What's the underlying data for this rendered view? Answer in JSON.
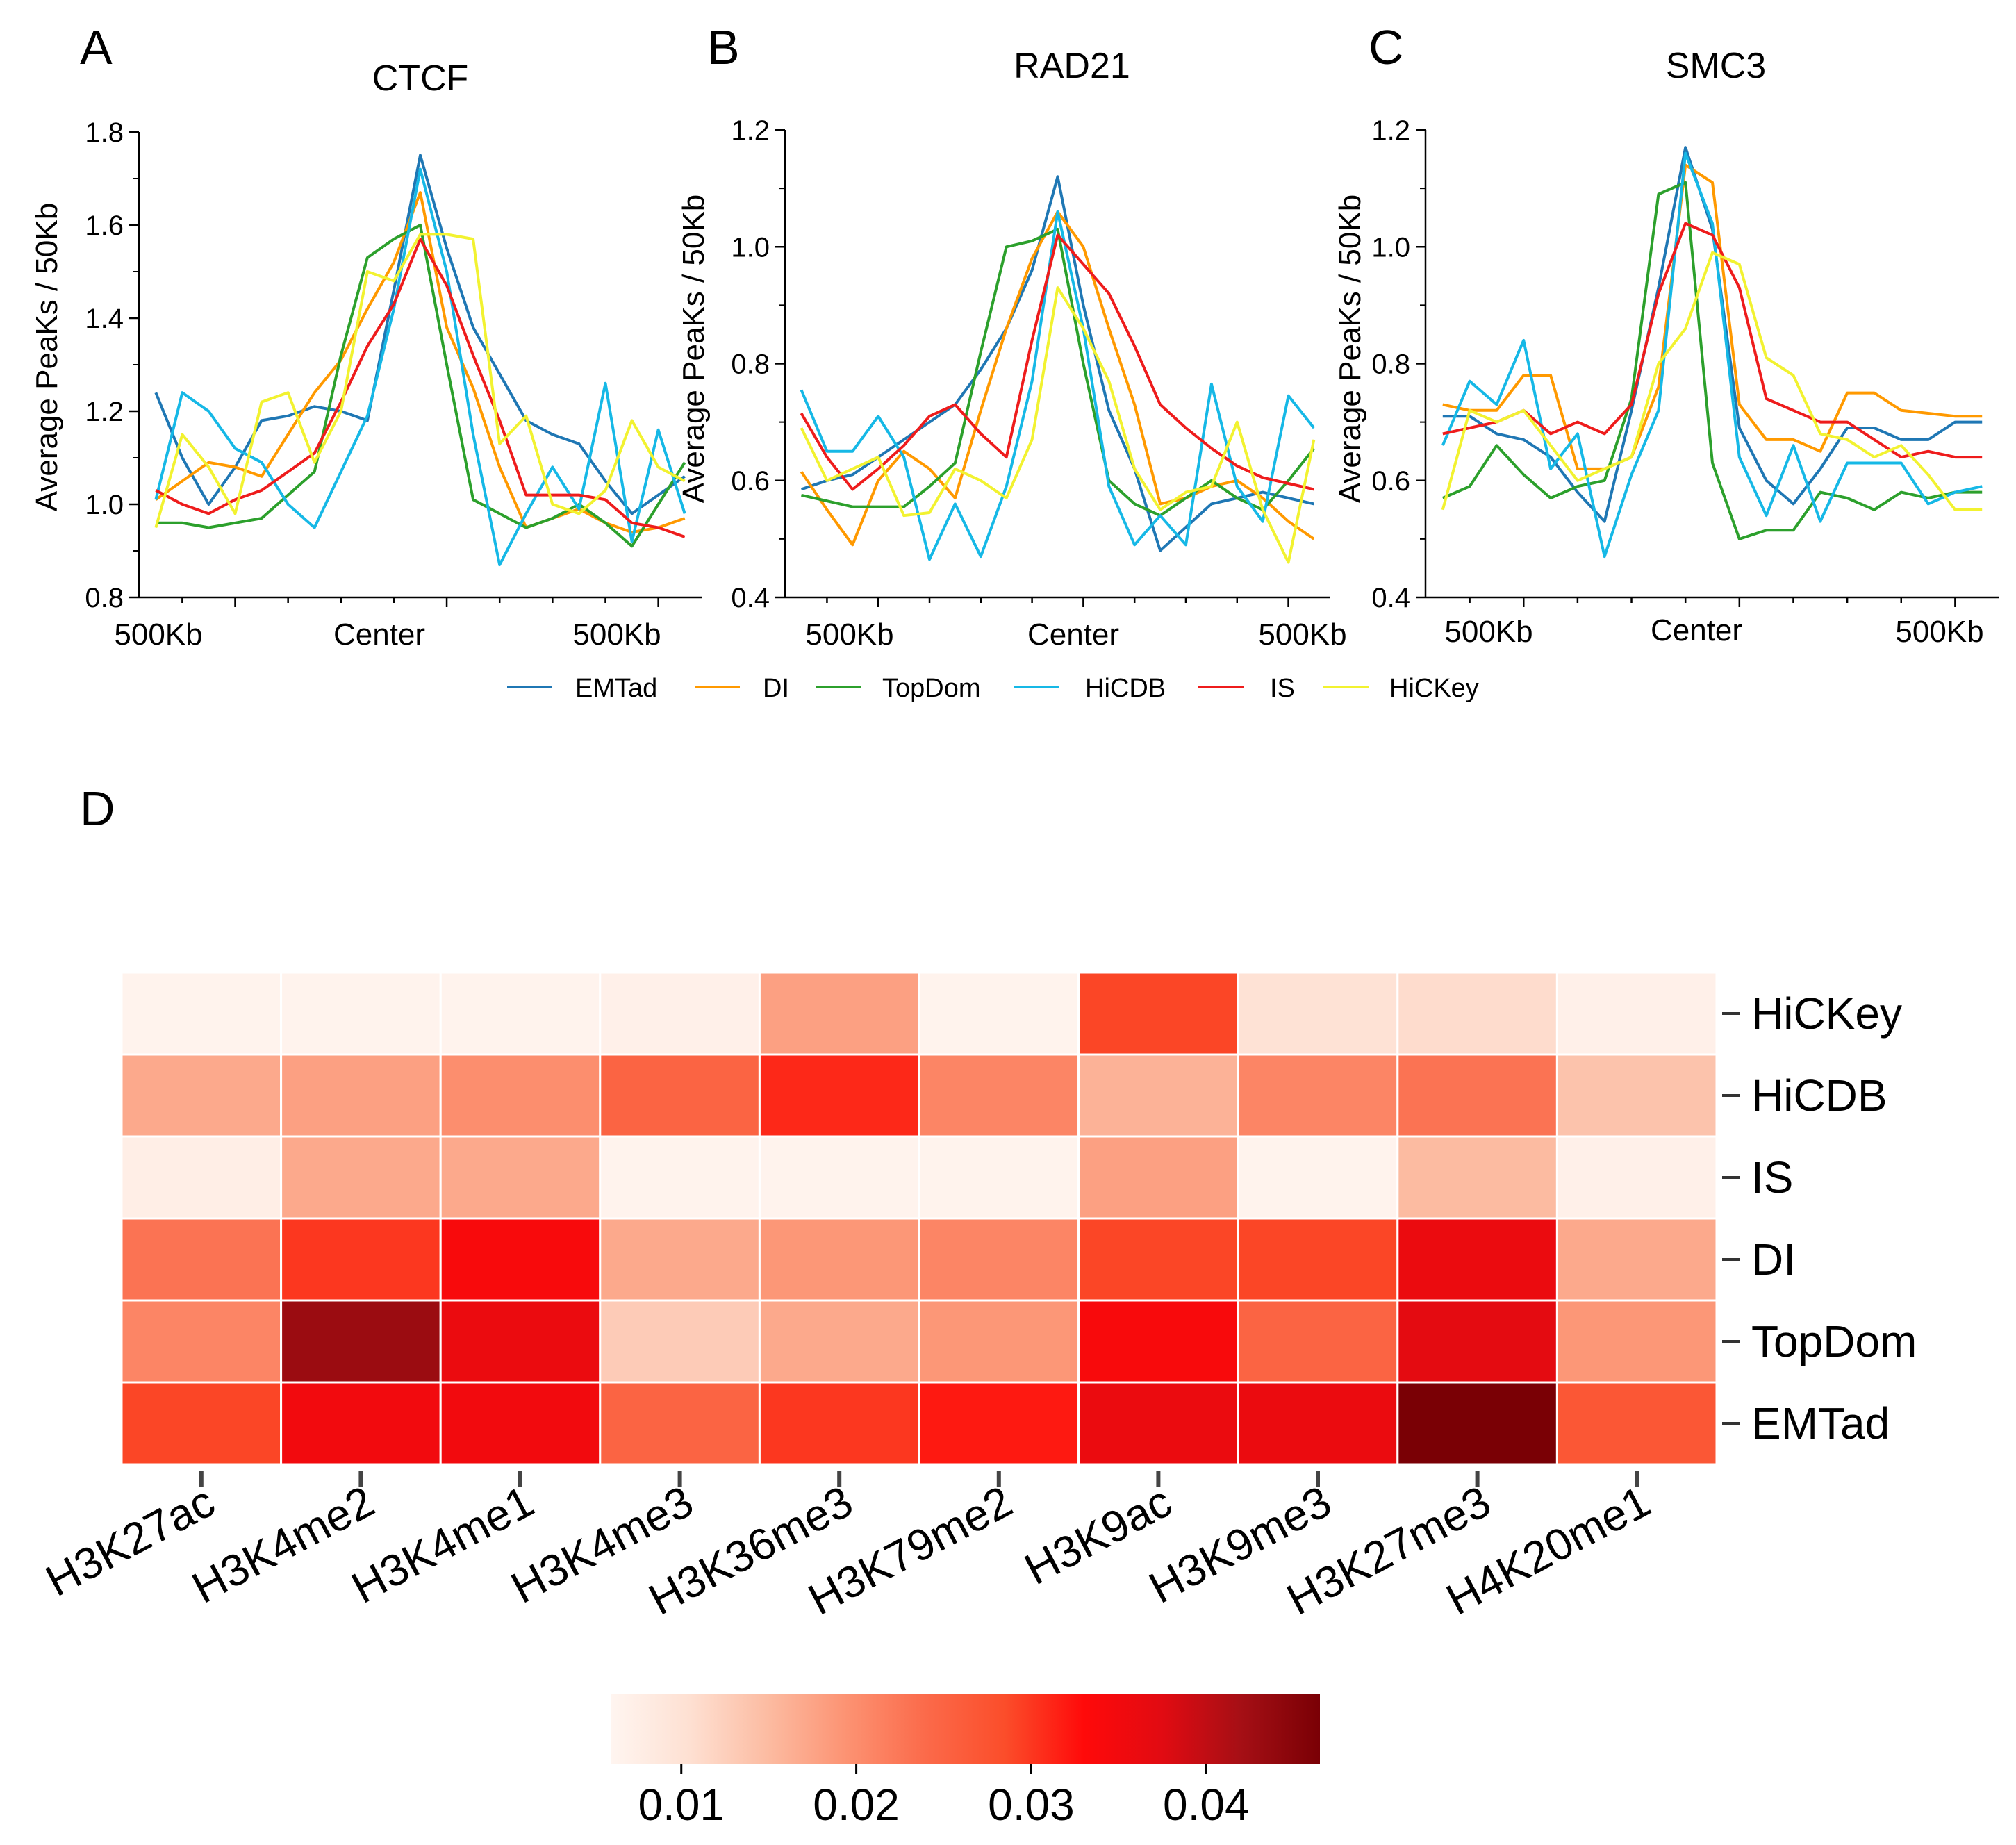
{
  "colors": {
    "EMTad": "#1f77b4",
    "DI": "#ff9900",
    "TopDom": "#2ca02c",
    "HiCDB": "#16b8e6",
    "IS": "#ee1c1c",
    "HiCKey": "#f2f230"
  },
  "chart_data": [
    {
      "type": "line",
      "panel": "A",
      "title": "CTCF",
      "ylabel": "Average PeaKs / 50Kb",
      "xlabel": "",
      "ylim": [
        0.8,
        1.8
      ],
      "yticks": [
        "0.8",
        "1.0",
        "1.2",
        "1.4",
        "1.6",
        "1.8"
      ],
      "xticklabels": [
        "500Kb",
        "Center",
        "500Kb"
      ],
      "grid": false,
      "x": [
        -10,
        -9,
        -8,
        -7,
        -6,
        -5,
        -4,
        -3,
        -2,
        -1,
        0,
        1,
        2,
        3,
        4,
        5,
        6,
        7,
        8,
        9,
        10
      ],
      "series": [
        {
          "name": "EMTad",
          "values": [
            1.24,
            1.1,
            1.0,
            1.08,
            1.18,
            1.19,
            1.21,
            1.2,
            1.18,
            1.46,
            1.75,
            1.55,
            1.38,
            1.28,
            1.18,
            1.15,
            1.13,
            1.05,
            0.98,
            1.02,
            1.06
          ]
        },
        {
          "name": "DI",
          "values": [
            1.01,
            1.05,
            1.09,
            1.08,
            1.06,
            1.15,
            1.24,
            1.31,
            1.42,
            1.52,
            1.67,
            1.38,
            1.25,
            1.08,
            0.95,
            0.97,
            0.99,
            0.96,
            0.94,
            0.95,
            0.97
          ]
        },
        {
          "name": "TopDom",
          "values": [
            0.96,
            0.96,
            0.95,
            0.96,
            0.97,
            1.02,
            1.07,
            1.32,
            1.53,
            1.57,
            1.6,
            1.3,
            1.01,
            0.98,
            0.95,
            0.97,
            1.0,
            0.96,
            0.91,
            1.0,
            1.09
          ]
        },
        {
          "name": "HiCDB",
          "values": [
            1.01,
            1.24,
            1.2,
            1.12,
            1.09,
            1.0,
            0.95,
            1.07,
            1.19,
            1.42,
            1.72,
            1.5,
            1.15,
            0.87,
            0.98,
            1.08,
            0.99,
            1.26,
            0.92,
            1.16,
            0.98
          ]
        },
        {
          "name": "IS",
          "values": [
            1.03,
            1.0,
            0.98,
            1.01,
            1.03,
            1.07,
            1.11,
            1.22,
            1.34,
            1.43,
            1.57,
            1.47,
            1.32,
            1.18,
            1.02,
            1.02,
            1.02,
            1.01,
            0.96,
            0.95,
            0.93
          ]
        },
        {
          "name": "HiCKey",
          "values": [
            0.95,
            1.15,
            1.08,
            0.98,
            1.22,
            1.24,
            1.09,
            1.2,
            1.5,
            1.48,
            1.58,
            1.58,
            1.57,
            1.13,
            1.19,
            1.0,
            0.98,
            1.03,
            1.18,
            1.08,
            1.05
          ]
        }
      ]
    },
    {
      "type": "line",
      "panel": "B",
      "title": "RAD21",
      "ylabel": "Average PeaKs / 50Kb",
      "xlabel": "",
      "ylim": [
        0.4,
        1.2
      ],
      "yticks": [
        "0.4",
        "0.6",
        "0.8",
        "1.0",
        "1.2"
      ],
      "xticklabels": [
        "500Kb",
        "Center",
        "500Kb"
      ],
      "grid": false,
      "x": [
        -10,
        -9,
        -8,
        -7,
        -6,
        -5,
        -4,
        -3,
        -2,
        -1,
        0,
        1,
        2,
        3,
        4,
        5,
        6,
        7,
        8,
        9,
        10
      ],
      "series": [
        {
          "name": "EMTad",
          "values": [
            0.585,
            0.6,
            0.61,
            0.64,
            0.67,
            0.7,
            0.73,
            0.79,
            0.86,
            0.96,
            1.12,
            0.9,
            0.72,
            0.62,
            0.48,
            0.52,
            0.56,
            0.57,
            0.58,
            0.57,
            0.56
          ]
        },
        {
          "name": "DI",
          "values": [
            0.615,
            0.55,
            0.49,
            0.6,
            0.65,
            0.62,
            0.57,
            0.72,
            0.86,
            0.98,
            1.06,
            1.0,
            0.86,
            0.73,
            0.56,
            0.57,
            0.59,
            0.6,
            0.57,
            0.53,
            0.5
          ]
        },
        {
          "name": "TopDom",
          "values": [
            0.575,
            0.565,
            0.555,
            0.555,
            0.555,
            0.59,
            0.63,
            0.82,
            1.0,
            1.01,
            1.03,
            0.8,
            0.6,
            0.56,
            0.54,
            0.57,
            0.6,
            0.57,
            0.55,
            0.6,
            0.655
          ]
        },
        {
          "name": "HiCDB",
          "values": [
            0.755,
            0.65,
            0.65,
            0.71,
            0.64,
            0.465,
            0.56,
            0.47,
            0.59,
            0.77,
            1.06,
            0.86,
            0.59,
            0.49,
            0.54,
            0.49,
            0.765,
            0.59,
            0.53,
            0.745,
            0.69
          ]
        },
        {
          "name": "IS",
          "values": [
            0.715,
            0.64,
            0.585,
            0.62,
            0.66,
            0.71,
            0.73,
            0.68,
            0.64,
            0.84,
            1.02,
            0.97,
            0.92,
            0.83,
            0.73,
            0.69,
            0.655,
            0.625,
            0.605,
            0.595,
            0.585
          ]
        },
        {
          "name": "HiCKey",
          "values": [
            0.69,
            0.6,
            0.62,
            0.64,
            0.54,
            0.545,
            0.62,
            0.6,
            0.57,
            0.67,
            0.93,
            0.86,
            0.77,
            0.62,
            0.55,
            0.58,
            0.59,
            0.7,
            0.55,
            0.46,
            0.67
          ]
        }
      ]
    },
    {
      "type": "line",
      "panel": "C",
      "title": "SMC3",
      "ylabel": "Average PeaKs / 50Kb",
      "xlabel": "",
      "ylim": [
        0.4,
        1.2
      ],
      "yticks": [
        "0.4",
        "0.6",
        "0.8",
        "1.0",
        "1.2"
      ],
      "xticklabels": [
        "500Kb",
        "Center",
        "500Kb"
      ],
      "grid": false,
      "x": [
        -10,
        -9,
        -8,
        -7,
        -6,
        -5,
        -4,
        -3,
        -2,
        -1,
        0,
        1,
        2,
        3,
        4,
        5,
        6,
        7,
        8,
        9,
        10
      ],
      "series": [
        {
          "name": "EMTad",
          "values": [
            0.71,
            0.71,
            0.68,
            0.67,
            0.64,
            0.58,
            0.53,
            0.72,
            0.93,
            1.17,
            1.03,
            0.69,
            0.6,
            0.56,
            0.62,
            0.69,
            0.69,
            0.67,
            0.67,
            0.7,
            0.7
          ]
        },
        {
          "name": "DI",
          "values": [
            0.73,
            0.72,
            0.72,
            0.78,
            0.78,
            0.62,
            0.62,
            0.64,
            0.76,
            1.14,
            1.11,
            0.73,
            0.67,
            0.67,
            0.65,
            0.75,
            0.75,
            0.72,
            0.715,
            0.71,
            0.71
          ]
        },
        {
          "name": "TopDom",
          "values": [
            0.57,
            0.59,
            0.66,
            0.61,
            0.57,
            0.59,
            0.6,
            0.74,
            1.09,
            1.11,
            0.63,
            0.5,
            0.515,
            0.515,
            0.58,
            0.57,
            0.55,
            0.58,
            0.57,
            0.58,
            0.58
          ]
        },
        {
          "name": "HiCDB",
          "values": [
            0.66,
            0.77,
            0.73,
            0.84,
            0.62,
            0.68,
            0.47,
            0.61,
            0.72,
            1.16,
            1.04,
            0.64,
            0.54,
            0.66,
            0.53,
            0.63,
            0.63,
            0.63,
            0.56,
            0.58,
            0.59
          ]
        },
        {
          "name": "IS",
          "values": [
            0.68,
            0.69,
            0.7,
            0.72,
            0.68,
            0.7,
            0.68,
            0.73,
            0.92,
            1.04,
            1.02,
            0.93,
            0.74,
            0.72,
            0.7,
            0.7,
            0.67,
            0.64,
            0.65,
            0.64,
            0.64
          ]
        },
        {
          "name": "HiCKey",
          "values": [
            0.55,
            0.72,
            0.7,
            0.72,
            0.66,
            0.6,
            0.62,
            0.64,
            0.8,
            0.86,
            0.99,
            0.97,
            0.81,
            0.78,
            0.68,
            0.67,
            0.64,
            0.66,
            0.61,
            0.55,
            0.55
          ]
        }
      ]
    },
    {
      "type": "heatmap",
      "panel": "D",
      "title": "",
      "xlabel": "",
      "ylabel": "",
      "columns": [
        "H3K27ac",
        "H3K4me2",
        "H3K4me1",
        "H3K4me3",
        "H3K36me3",
        "H3K79me2",
        "H3K9ac",
        "H3K9me3",
        "H3K27me3",
        "H4K20me1"
      ],
      "rows": [
        "HiCKey",
        "HiCDB",
        "IS",
        "DI",
        "TopDom",
        "EMTad"
      ],
      "values": [
        [
          0.0065,
          0.0065,
          0.0065,
          0.007,
          0.018,
          0.0065,
          0.029,
          0.01,
          0.011,
          0.007
        ],
        [
          0.017,
          0.018,
          0.02,
          0.025,
          0.031,
          0.021,
          0.016,
          0.021,
          0.023,
          0.014
        ],
        [
          0.0075,
          0.017,
          0.017,
          0.0065,
          0.0065,
          0.0065,
          0.018,
          0.0065,
          0.015,
          0.007
        ],
        [
          0.023,
          0.03,
          0.034,
          0.017,
          0.019,
          0.021,
          0.029,
          0.029,
          0.036,
          0.017
        ],
        [
          0.021,
          0.043,
          0.036,
          0.013,
          0.017,
          0.019,
          0.034,
          0.025,
          0.037,
          0.019
        ],
        [
          0.029,
          0.035,
          0.035,
          0.025,
          0.03,
          0.032,
          0.036,
          0.036,
          0.047,
          0.027
        ]
      ],
      "colorbar": {
        "vmin": 0.006,
        "vmax": 0.0465,
        "ticks": [
          "0.01",
          "0.02",
          "0.03",
          "0.04"
        ],
        "colormap": [
          "#fff5f0",
          "#fee0d2",
          "#fcbba1",
          "#fc9272",
          "#fb6a4a",
          "#fb4d2a",
          "#ff0a0a",
          "#e10b12",
          "#a50f15",
          "#7a0005"
        ]
      }
    }
  ],
  "legend": [
    "EMTad",
    "DI",
    "TopDom",
    "HiCDB",
    "IS",
    "HiCKey"
  ],
  "panel_labels": [
    "A",
    "B",
    "C",
    "D"
  ]
}
